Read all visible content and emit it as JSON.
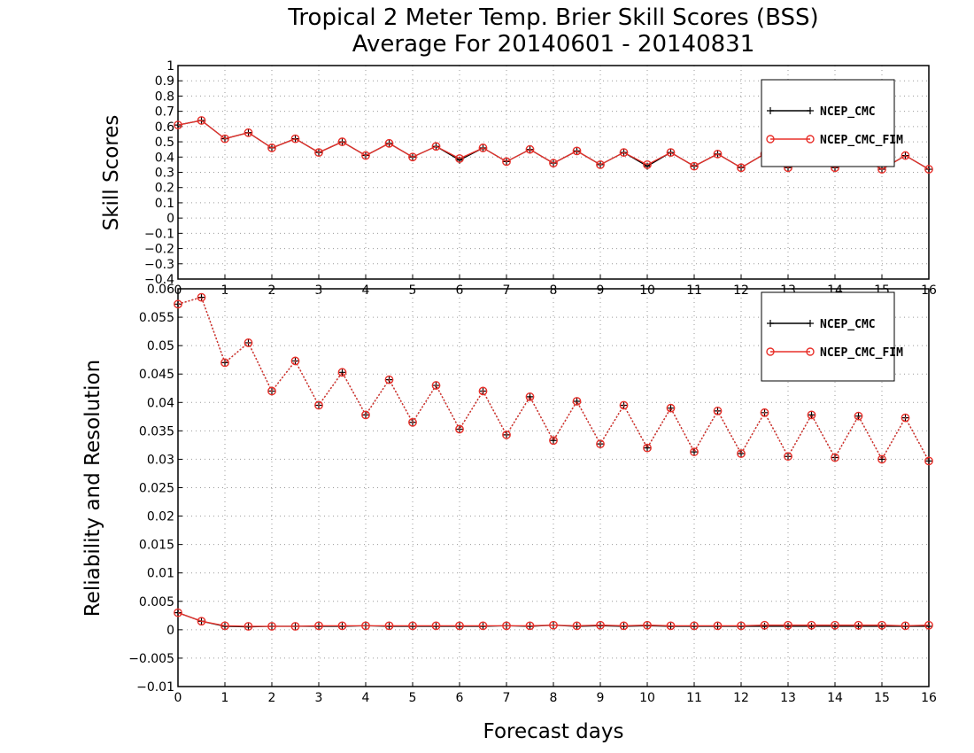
{
  "title_line1": "Tropical 2 Meter Temp. Brier Skill Scores (BSS)",
  "title_line2": "Average For 20140601 - 20140831",
  "xlabel": "Forecast days",
  "colors": {
    "ncep_cmc": "#000000",
    "ncep_cmc_fim": "#e8302a"
  },
  "chart_data": [
    {
      "type": "line",
      "ylabel": "Skill Scores",
      "ylim": [
        -0.4,
        1.0
      ],
      "xlim": [
        0,
        16
      ],
      "yticks": [
        "-0.4",
        "-0.3",
        "-0.2",
        "-0.1",
        "0",
        "0.1",
        "0.2",
        "0.3",
        "0.4",
        "0.5",
        "0.6",
        "0.7",
        "0.8",
        "0.9",
        "1"
      ],
      "xticks": [
        "0",
        "1",
        "2",
        "3",
        "4",
        "5",
        "6",
        "7",
        "8",
        "9",
        "10",
        "11",
        "12",
        "13",
        "14",
        "15",
        "16"
      ],
      "grid": true,
      "legend_position": "top-right",
      "x": [
        0,
        0.5,
        1,
        1.5,
        2,
        2.5,
        3,
        3.5,
        4,
        4.5,
        5,
        5.5,
        6,
        6.5,
        7,
        7.5,
        8,
        8.5,
        9,
        9.5,
        10,
        10.5,
        11,
        11.5,
        12,
        12.5,
        13,
        13.5,
        14,
        14.5,
        15,
        15.5,
        16
      ],
      "series": [
        {
          "name": "NCEP_CMC",
          "color": "#000000",
          "marker": "plus",
          "values": [
            0.61,
            0.64,
            0.52,
            0.56,
            0.46,
            0.52,
            0.43,
            0.5,
            0.41,
            0.49,
            0.4,
            0.47,
            0.38,
            0.46,
            0.37,
            0.45,
            0.36,
            0.44,
            0.35,
            0.43,
            0.34,
            0.43,
            0.34,
            0.42,
            0.33,
            0.42,
            0.33,
            0.42,
            0.33,
            0.41,
            0.32,
            0.41,
            0.32
          ]
        },
        {
          "name": "NCEP_CMC_FIM",
          "color": "#e8302a",
          "marker": "circle",
          "values": [
            0.61,
            0.64,
            0.52,
            0.56,
            0.46,
            0.52,
            0.43,
            0.5,
            0.41,
            0.49,
            0.4,
            0.47,
            0.39,
            0.46,
            0.37,
            0.45,
            0.36,
            0.44,
            0.35,
            0.43,
            0.35,
            0.43,
            0.34,
            0.42,
            0.33,
            0.42,
            0.33,
            0.42,
            0.33,
            0.41,
            0.32,
            0.41,
            0.32
          ]
        }
      ]
    },
    {
      "type": "line",
      "ylabel": "Reliability and Resolution",
      "ylim": [
        -0.01,
        0.06
      ],
      "xlim": [
        0,
        16
      ],
      "yticks": [
        "-0.01",
        "-0.005",
        "0",
        "0.005",
        "0.01",
        "0.015",
        "0.02",
        "0.025",
        "0.03",
        "0.035",
        "0.04",
        "0.045",
        "0.05",
        "0.055",
        "0.06"
      ],
      "xticks": [
        "0",
        "1",
        "2",
        "3",
        "4",
        "5",
        "6",
        "7",
        "8",
        "9",
        "10",
        "11",
        "12",
        "13",
        "14",
        "15",
        "16"
      ],
      "grid": true,
      "legend_position": "top-right",
      "x": [
        0,
        0.5,
        1,
        1.5,
        2,
        2.5,
        3,
        3.5,
        4,
        4.5,
        5,
        5.5,
        6,
        6.5,
        7,
        7.5,
        8,
        8.5,
        9,
        9.5,
        10,
        10.5,
        11,
        11.5,
        12,
        12.5,
        13,
        13.5,
        14,
        14.5,
        15,
        15.5,
        16
      ],
      "series": [
        {
          "name": "NCEP_CMC",
          "color": "#000000",
          "marker": "plus",
          "style": "dotted",
          "legend": true,
          "values": [
            0.0573,
            0.0585,
            0.047,
            0.0505,
            0.042,
            0.0473,
            0.0395,
            0.0453,
            0.0378,
            0.044,
            0.0365,
            0.043,
            0.0353,
            0.042,
            0.0343,
            0.041,
            0.0333,
            0.0402,
            0.0327,
            0.0395,
            0.032,
            0.039,
            0.0313,
            0.0385,
            0.031,
            0.0382,
            0.0305,
            0.0378,
            0.0303,
            0.0376,
            0.03,
            0.0373,
            0.0297
          ]
        },
        {
          "name": "NCEP_CMC",
          "color": "#000000",
          "marker": "plus",
          "style": "solid",
          "legend": false,
          "values": [
            0.003,
            0.0015,
            0.0006,
            0.0005,
            0.0006,
            0.0006,
            0.0006,
            0.0006,
            0.0007,
            0.0006,
            0.0006,
            0.0006,
            0.0006,
            0.0006,
            0.0007,
            0.0006,
            0.0008,
            0.0006,
            0.0007,
            0.0006,
            0.0007,
            0.0006,
            0.0006,
            0.0006,
            0.0006,
            0.0006,
            0.0006,
            0.0006,
            0.0006,
            0.0006,
            0.0006,
            0.0006,
            0.0006
          ]
        },
        {
          "name": "NCEP_CMC_FIM",
          "color": "#e8302a",
          "marker": "circle",
          "style": "dotted",
          "legend": true,
          "values": [
            0.0573,
            0.0585,
            0.047,
            0.0505,
            0.042,
            0.0473,
            0.0395,
            0.0453,
            0.0378,
            0.044,
            0.0365,
            0.043,
            0.0353,
            0.042,
            0.0343,
            0.041,
            0.0333,
            0.0402,
            0.0327,
            0.0395,
            0.032,
            0.039,
            0.0313,
            0.0385,
            0.031,
            0.0382,
            0.0305,
            0.0378,
            0.0303,
            0.0376,
            0.03,
            0.0373,
            0.0297
          ]
        },
        {
          "name": "NCEP_CMC_FIM",
          "color": "#e8302a",
          "marker": "circle",
          "style": "solid",
          "legend": false,
          "values": [
            0.003,
            0.0015,
            0.0007,
            0.0006,
            0.0006,
            0.0006,
            0.0007,
            0.0007,
            0.0007,
            0.0007,
            0.0007,
            0.0007,
            0.0007,
            0.0007,
            0.0007,
            0.0007,
            0.0008,
            0.0007,
            0.0008,
            0.0007,
            0.0008,
            0.0007,
            0.0007,
            0.0007,
            0.0007,
            0.0008,
            0.0008,
            0.0008,
            0.0008,
            0.0008,
            0.0008,
            0.0007,
            0.0008
          ]
        }
      ]
    }
  ]
}
